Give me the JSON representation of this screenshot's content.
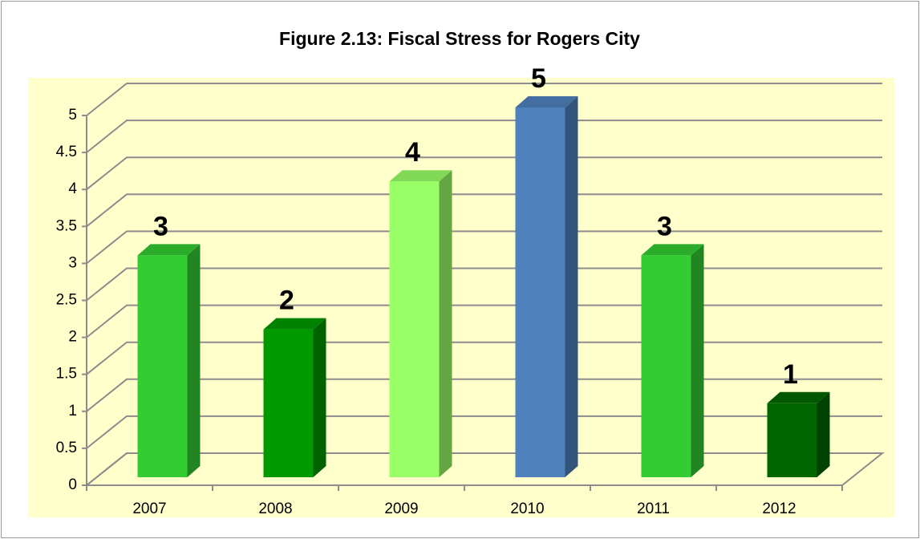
{
  "chart_data": {
    "type": "bar3d",
    "title": "Figure 2.13: Fiscal Stress for Rogers City",
    "categories": [
      "2007",
      "2008",
      "2009",
      "2010",
      "2011",
      "2012"
    ],
    "values": [
      3,
      2,
      4,
      5,
      3,
      1
    ],
    "colors": [
      "#33cc33",
      "#009900",
      "#99ff66",
      "#4f81bd",
      "#33cc33",
      "#006600"
    ],
    "ylim": [
      0,
      5
    ],
    "yticks": [
      0,
      0.5,
      1,
      1.5,
      2,
      2.5,
      3,
      3.5,
      4,
      4.5,
      5
    ],
    "grid": true
  }
}
